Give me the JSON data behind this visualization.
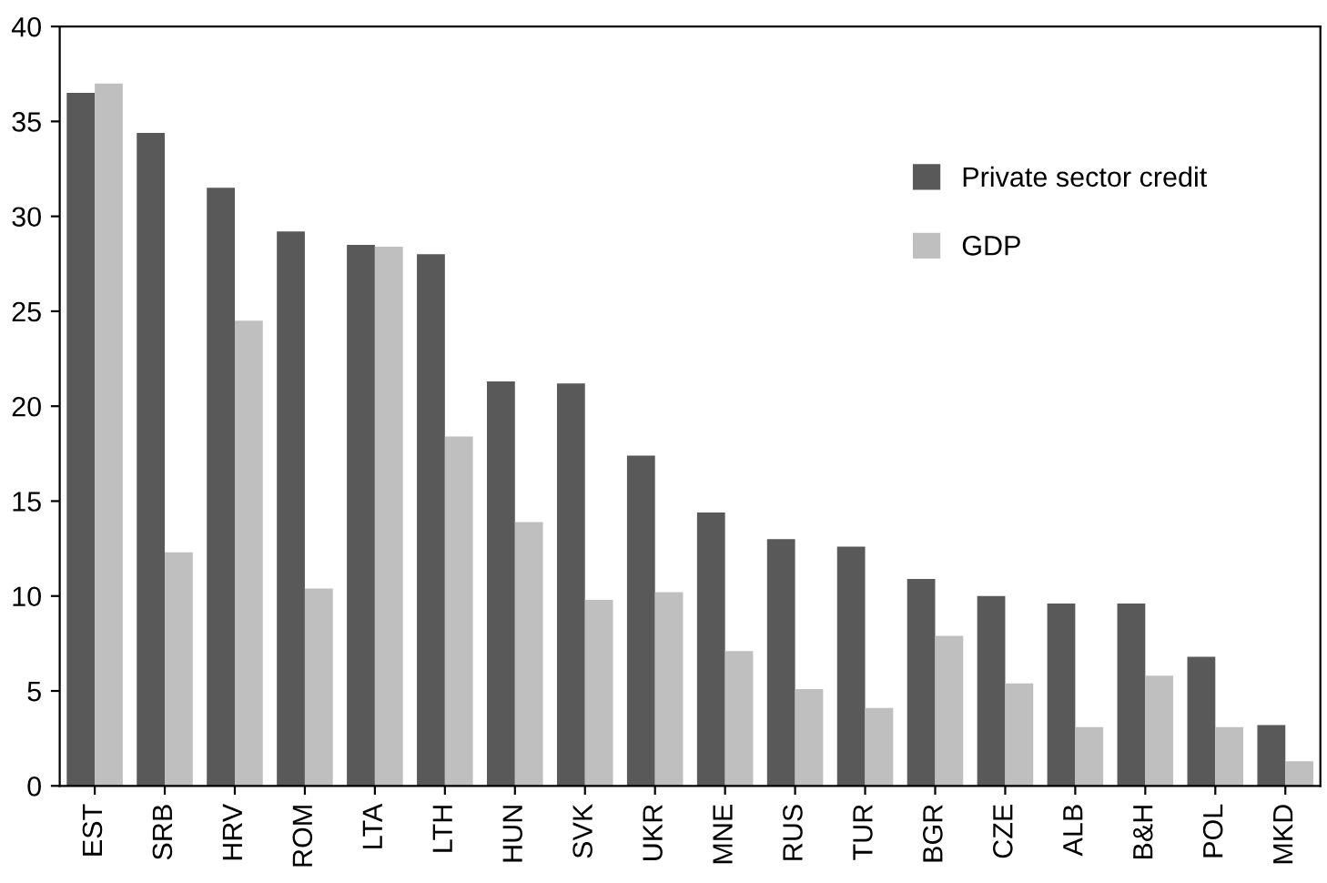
{
  "chart_data": {
    "type": "bar",
    "categories": [
      "EST",
      "SRB",
      "HRV",
      "ROM",
      "LTA",
      "LTH",
      "HUN",
      "SVK",
      "UKR",
      "MNE",
      "RUS",
      "TUR",
      "BGR",
      "CZE",
      "ALB",
      "B&H",
      "POL",
      "MKD"
    ],
    "series": [
      {
        "name": "Private sector credit",
        "color": "#595959",
        "values": [
          36.5,
          34.4,
          31.5,
          29.2,
          28.5,
          28.0,
          21.3,
          21.2,
          17.4,
          14.4,
          13.0,
          12.6,
          10.9,
          10.0,
          9.6,
          9.6,
          6.8,
          3.2
        ]
      },
      {
        "name": "GDP",
        "color": "#bfbfbf",
        "values": [
          37.0,
          12.3,
          24.5,
          10.4,
          28.4,
          18.4,
          13.9,
          9.8,
          10.2,
          7.1,
          5.1,
          4.1,
          7.9,
          5.4,
          3.1,
          5.8,
          3.1,
          1.3
        ]
      }
    ],
    "ylim": [
      0,
      40
    ],
    "yticks": [
      0,
      5,
      10,
      15,
      20,
      25,
      30,
      35,
      40
    ],
    "grid": false,
    "legend": "top right"
  }
}
